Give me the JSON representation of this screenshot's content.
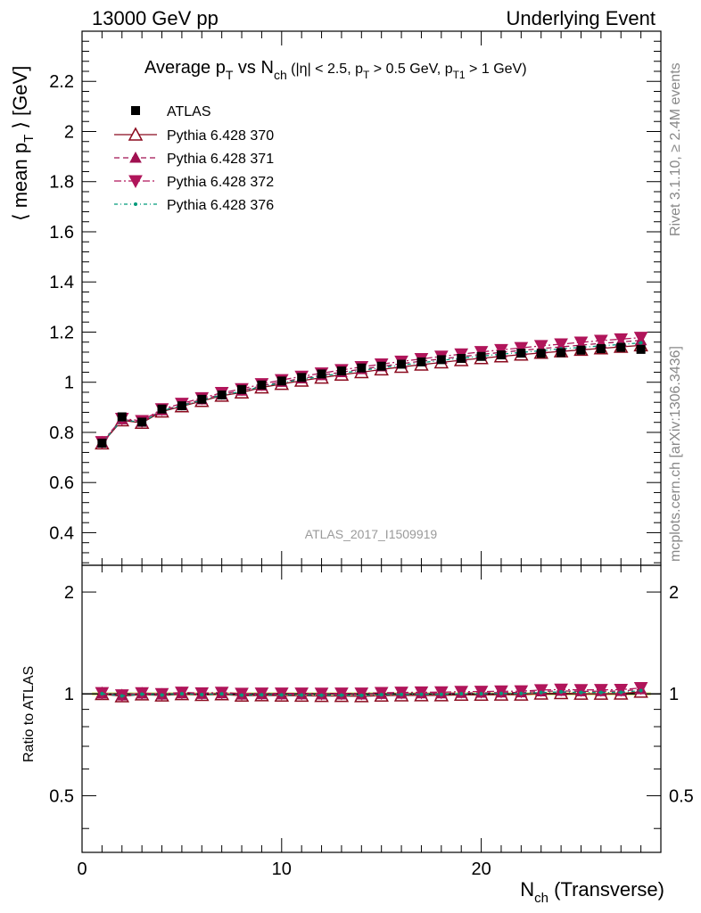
{
  "header": {
    "left": "13000 GeV pp",
    "right": "Underlying Event"
  },
  "side_labels": {
    "rivet": "Rivet 3.1.10, ≥ 2.4M events",
    "mcplots": "mcplots.cern.ch [arXiv:1306.3436]"
  },
  "chart_data": {
    "type": "line",
    "title": {
      "main": "Average p",
      "main_sub": "T",
      "vs": " vs N",
      "vs_sub": "ch",
      "cuts": " (|η| < 2.5, p",
      "cuts_sub1": "T",
      "cuts2": " > 0.5 GeV, p",
      "cuts_sub2": "T1",
      "cuts3": " > 1 GeV)"
    },
    "ylabel": {
      "pre": "⟨ mean p",
      "sub": "T",
      "post": " ⟩ [GeV]"
    },
    "xlabel": {
      "pre": "N",
      "sub": "ch",
      "post": " (Transverse)"
    },
    "ratio_ylabel": "Ratio to ATLAS",
    "watermark": "ATLAS_2017_I1509919",
    "xlim": [
      0,
      29
    ],
    "ylim": [
      0.27,
      2.4
    ],
    "ratio_ylim": [
      0.34,
      2.4
    ],
    "x_ticks": [
      0,
      10,
      20
    ],
    "y_ticks": [
      0.4,
      0.6,
      0.8,
      1,
      1.2,
      1.4,
      1.6,
      1.8,
      2,
      2.2
    ],
    "ratio_ticks": [
      0.5,
      1,
      2
    ],
    "x": [
      1,
      2,
      3,
      4,
      5,
      6,
      7,
      8,
      9,
      10,
      11,
      12,
      13,
      14,
      15,
      16,
      17,
      18,
      19,
      20,
      21,
      22,
      23,
      24,
      25,
      26,
      27,
      28
    ],
    "reference": {
      "name": "ATLAS",
      "color": "#000000",
      "values": [
        0.757,
        0.862,
        0.841,
        0.893,
        0.906,
        0.932,
        0.949,
        0.971,
        0.989,
        1.005,
        1.019,
        1.033,
        1.045,
        1.057,
        1.064,
        1.072,
        1.081,
        1.09,
        1.095,
        1.103,
        1.109,
        1.116,
        1.115,
        1.118,
        1.128,
        1.134,
        1.139,
        1.131
      ]
    },
    "series": [
      {
        "name": "Pythia 6.428 370",
        "color": "#8b0a1e",
        "marker": "triangle-up-open",
        "dash": "",
        "values": [
          0.756,
          0.848,
          0.838,
          0.883,
          0.904,
          0.925,
          0.946,
          0.959,
          0.979,
          0.993,
          1.006,
          1.018,
          1.03,
          1.04,
          1.051,
          1.061,
          1.07,
          1.079,
          1.088,
          1.096,
          1.103,
          1.11,
          1.117,
          1.123,
          1.129,
          1.135,
          1.141,
          1.147
        ]
      },
      {
        "name": "Pythia 6.428 371",
        "color": "#a01050",
        "marker": "triangle-up",
        "dash": "6,4",
        "values": [
          0.759,
          0.852,
          0.842,
          0.888,
          0.909,
          0.931,
          0.952,
          0.966,
          0.986,
          1.001,
          1.015,
          1.028,
          1.04,
          1.052,
          1.063,
          1.074,
          1.084,
          1.093,
          1.102,
          1.111,
          1.119,
          1.127,
          1.134,
          1.141,
          1.148,
          1.155,
          1.161,
          1.167
        ]
      },
      {
        "name": "Pythia 6.428 372",
        "color": "#b0155a",
        "marker": "triangle-down",
        "dash": "8,3,2,3",
        "values": [
          0.762,
          0.855,
          0.846,
          0.893,
          0.915,
          0.937,
          0.958,
          0.973,
          0.993,
          1.009,
          1.023,
          1.036,
          1.049,
          1.061,
          1.072,
          1.083,
          1.093,
          1.103,
          1.112,
          1.121,
          1.129,
          1.137,
          1.145,
          1.152,
          1.159,
          1.166,
          1.172,
          1.178
        ]
      },
      {
        "name": "Pythia 6.428 376",
        "color": "#009a7a",
        "marker": "dot",
        "dash": "4,3,1,3",
        "values": [
          0.758,
          0.85,
          0.84,
          0.886,
          0.907,
          0.928,
          0.949,
          0.963,
          0.983,
          0.998,
          1.011,
          1.024,
          1.036,
          1.047,
          1.058,
          1.068,
          1.078,
          1.087,
          1.096,
          1.104,
          1.112,
          1.119,
          1.126,
          1.133,
          1.139,
          1.145,
          1.151,
          1.157
        ]
      }
    ],
    "legend_position": "top-left",
    "grid": false
  }
}
